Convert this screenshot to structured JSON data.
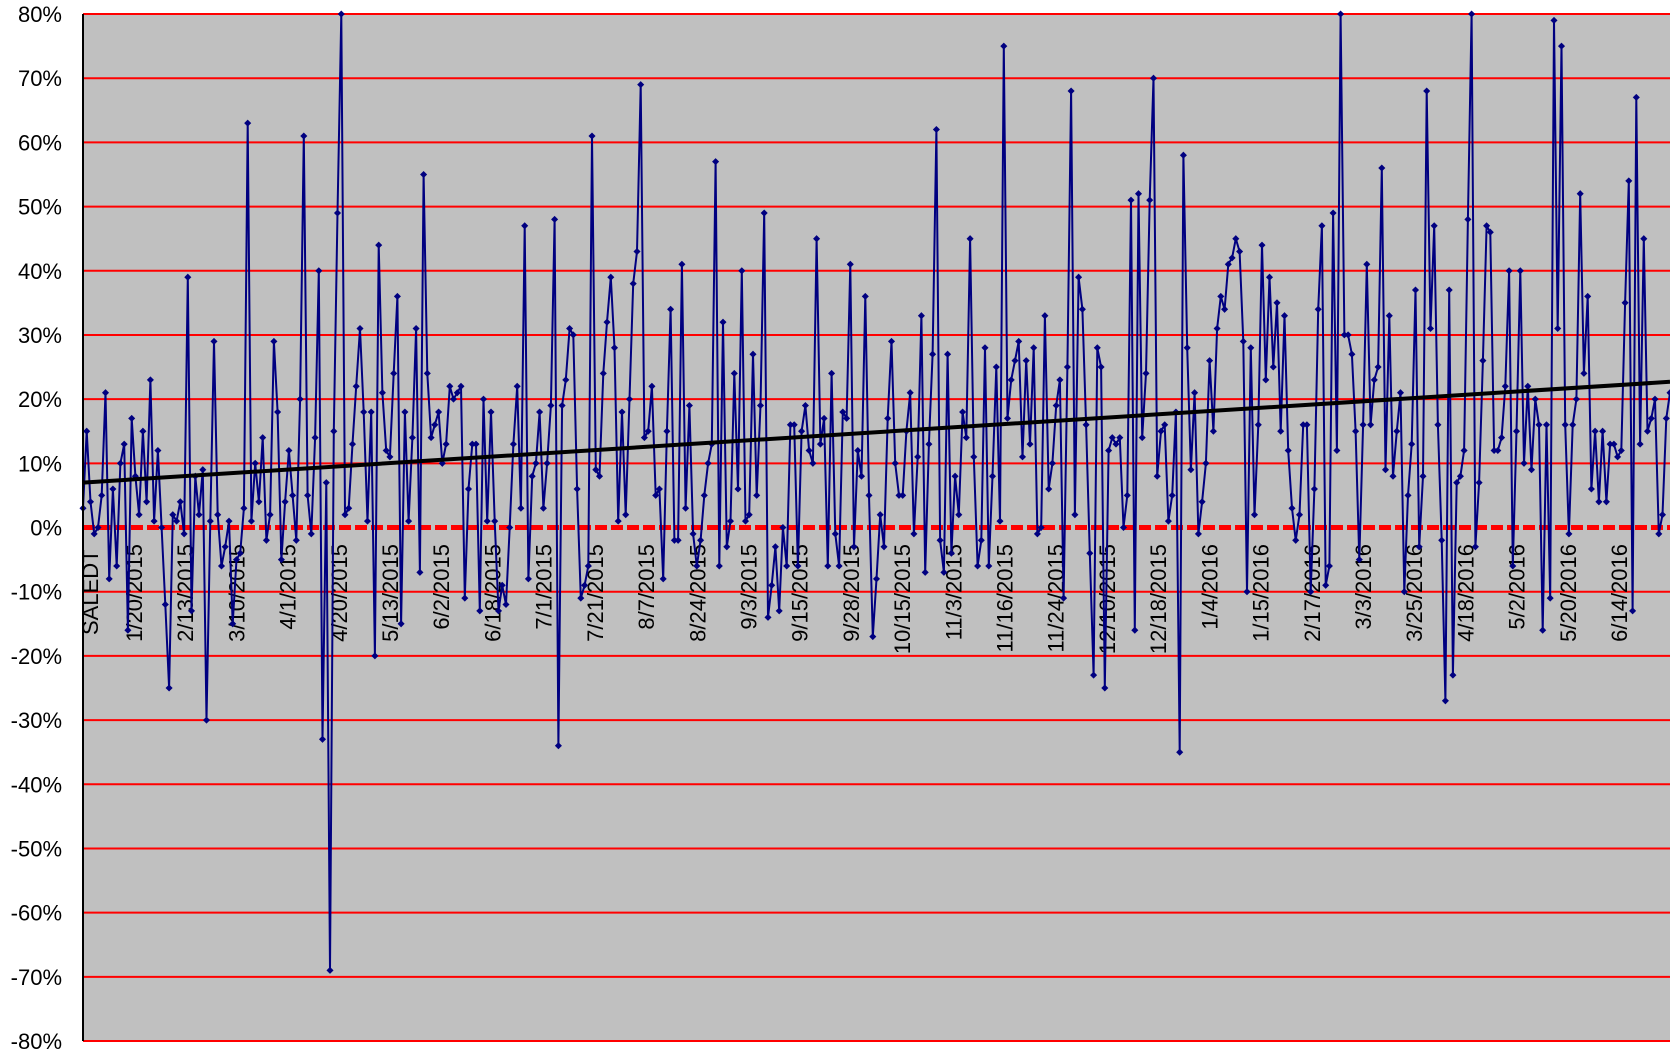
{
  "chart_data": {
    "type": "line",
    "title": "",
    "xlabel": "",
    "ylabel": "",
    "axis_label_in_plot": "SALEDT",
    "ylim": [
      -80,
      80
    ],
    "y_ticks": [
      "80%",
      "70%",
      "60%",
      "50%",
      "40%",
      "30%",
      "20%",
      "10%",
      "0%",
      "-10%",
      "-20%",
      "-30%",
      "-40%",
      "-50%",
      "-60%",
      "-70%",
      "-80%"
    ],
    "x_tick_labels": [
      "1/20/2015",
      "2/13/2015",
      "3/10/2015",
      "4/1/2015",
      "4/20/2015",
      "5/13/2015",
      "6/2/2015",
      "6/18/2015",
      "7/1/2015",
      "7/21/2015",
      "8/7/2015",
      "8/24/2015",
      "9/3/2015",
      "9/15/2015",
      "9/28/2015",
      "10/15/2015",
      "11/3/2015",
      "11/16/2015",
      "11/24/2015",
      "12/10/2015",
      "12/18/2015",
      "1/4/2016",
      "1/15/2016",
      "2/17/2016",
      "3/3/2016",
      "3/25/2016",
      "4/18/2016",
      "5/2/2016",
      "5/20/2016",
      "6/14/2016"
    ],
    "grid": true,
    "colors": {
      "plot_background": "#c0c0c0",
      "gridline": "#ff0000",
      "zero_line": "#ff0000",
      "series": "#000080",
      "trend": "#000000"
    },
    "series": [
      {
        "values": [
          3,
          15,
          4,
          -1,
          0,
          5,
          21,
          -8,
          6,
          -6,
          10,
          13,
          -16,
          17,
          8,
          2,
          15,
          4,
          23,
          1,
          12,
          0,
          -12,
          -25,
          2,
          1,
          4,
          -1,
          39,
          -13,
          8,
          2,
          9,
          -30,
          1,
          29,
          2,
          -6,
          -3,
          1,
          -15,
          -5,
          -4,
          3,
          63,
          1,
          10,
          4,
          14,
          -2,
          2,
          29,
          18,
          -5,
          4,
          12,
          5,
          -2,
          20,
          61,
          5,
          -1,
          14,
          40,
          -33,
          7,
          -69,
          15,
          49,
          80,
          2,
          3,
          13,
          22,
          31,
          18,
          1,
          18,
          -20,
          44,
          21,
          12,
          11,
          24,
          36,
          -15,
          18,
          1,
          14,
          31,
          -7,
          55,
          24,
          14,
          16,
          18,
          10,
          13,
          22,
          20,
          21,
          22,
          -11,
          6,
          13,
          13,
          -13,
          20,
          1,
          18,
          1,
          -13,
          -9,
          -12,
          0,
          13,
          22,
          3,
          47,
          -8,
          8,
          10,
          18,
          3,
          10,
          19,
          48,
          -34,
          19,
          23,
          31,
          30,
          6,
          -11,
          -9,
          -6,
          61,
          9,
          8,
          24,
          32,
          39,
          28,
          1,
          18,
          2,
          20,
          38,
          43,
          69,
          14,
          15,
          22,
          5,
          6,
          -8,
          15,
          34,
          -2,
          -2,
          41,
          3,
          19,
          -1,
          -6,
          -2,
          5,
          10,
          13,
          57,
          -6,
          32,
          -3,
          1,
          24,
          6,
          40,
          1,
          2,
          27,
          5,
          19,
          49,
          -14,
          -9,
          -3,
          -13,
          0,
          -6,
          16,
          16,
          -6,
          15,
          19,
          12,
          10,
          45,
          13,
          17,
          -6,
          24,
          -1,
          -6,
          18,
          17,
          41,
          -3,
          12,
          8,
          36,
          5,
          -17,
          -8,
          2,
          -3,
          17,
          29,
          10,
          5,
          5,
          15,
          21,
          -1,
          11,
          33,
          -7,
          13,
          27,
          62,
          -2,
          -7,
          27,
          -4,
          8,
          2,
          18,
          14,
          45,
          11,
          -6,
          -2,
          28,
          -6,
          8,
          25,
          1,
          75,
          17,
          23,
          26,
          29,
          11,
          26,
          13,
          28,
          -1,
          0,
          33,
          6,
          10,
          19,
          23,
          -11,
          25,
          68,
          2,
          39,
          34,
          16,
          -4,
          -23,
          28,
          25,
          -25,
          12,
          14,
          13,
          14,
          0,
          5,
          51,
          -16,
          52,
          14,
          24,
          51,
          70,
          8,
          15,
          16,
          1,
          5,
          18,
          -35,
          58,
          28,
          9,
          21,
          -1,
          4,
          10,
          26,
          15,
          31,
          36,
          34,
          41,
          42,
          45,
          43,
          29,
          -10,
          28,
          2,
          16,
          44,
          23,
          39,
          25,
          35,
          15,
          33,
          12,
          3,
          -2,
          2,
          16,
          16,
          -10,
          6,
          34,
          47,
          -9,
          -6,
          49,
          12,
          80,
          30,
          30,
          27,
          15,
          -5,
          16,
          41,
          16,
          23,
          25,
          56,
          9,
          33,
          8,
          15,
          21,
          -10,
          5,
          13,
          37,
          -3,
          8,
          68,
          31,
          47,
          16,
          -2,
          -27,
          37,
          -23,
          7,
          8,
          12,
          48,
          80,
          -3,
          7,
          26,
          47,
          46,
          12,
          12,
          14,
          22,
          40,
          -6,
          15,
          40,
          10,
          22,
          9,
          20,
          16,
          -16,
          16,
          -11,
          79,
          31,
          75,
          16,
          -1,
          16,
          20,
          52,
          24,
          36,
          6,
          15,
          4,
          15,
          4,
          13,
          13,
          11,
          12,
          35,
          54,
          -13,
          67,
          13,
          45,
          15,
          17,
          20,
          -1,
          2,
          17,
          21
        ],
        "trend": {
          "start": 7,
          "end": 22.7
        }
      }
    ]
  }
}
